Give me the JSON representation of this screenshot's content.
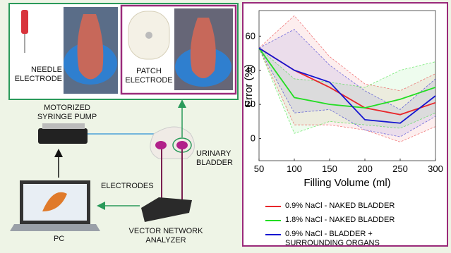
{
  "diagram": {
    "labels": {
      "needle": "NEEDLE ELECTRODE",
      "patch": "PATCH ELECTRODE",
      "pump": "MOTORIZED SYRINGE PUMP",
      "bladder": "URINARY BLADDER",
      "electrodes": "ELECTRODES",
      "pc": "PC",
      "vna": "VECTOR NETWORK ANALYZER"
    }
  },
  "chart_data": {
    "type": "line",
    "xlabel": "Filling Volume (ml)",
    "ylabel": "Error (%)",
    "x": [
      50,
      100,
      150,
      200,
      250,
      300
    ],
    "series": [
      {
        "name": "0.9% NaCl - NAKED BLADDER",
        "color": "#e8262a",
        "values": [
          53,
          40,
          30,
          18,
          14,
          21
        ],
        "upper": [
          53,
          72,
          48,
          32,
          28,
          38
        ],
        "lower": [
          53,
          8,
          8,
          5,
          -2,
          7
        ]
      },
      {
        "name": "1.8% NaCl - NAKED BLADDER",
        "color": "#22dd22",
        "values": [
          53,
          24,
          20,
          18,
          23,
          30
        ],
        "upper": [
          53,
          35,
          33,
          30,
          40,
          45
        ],
        "lower": [
          53,
          3,
          10,
          8,
          6,
          15
        ]
      },
      {
        "name": "0.9% NaCl - BLADDER + SURROUNDING ORGANS",
        "color": "#1515d0",
        "values": [
          53,
          40,
          33,
          11,
          9,
          25
        ],
        "upper": [
          53,
          64,
          43,
          28,
          17,
          35
        ],
        "lower": [
          53,
          15,
          17,
          5,
          1,
          13
        ]
      }
    ],
    "xlim": [
      50,
      300
    ],
    "xticks": [
      50,
      100,
      150,
      200,
      250,
      300
    ],
    "ylim": [
      -13,
      75
    ],
    "yticks": [
      0,
      20,
      40,
      60
    ],
    "grid": false
  }
}
